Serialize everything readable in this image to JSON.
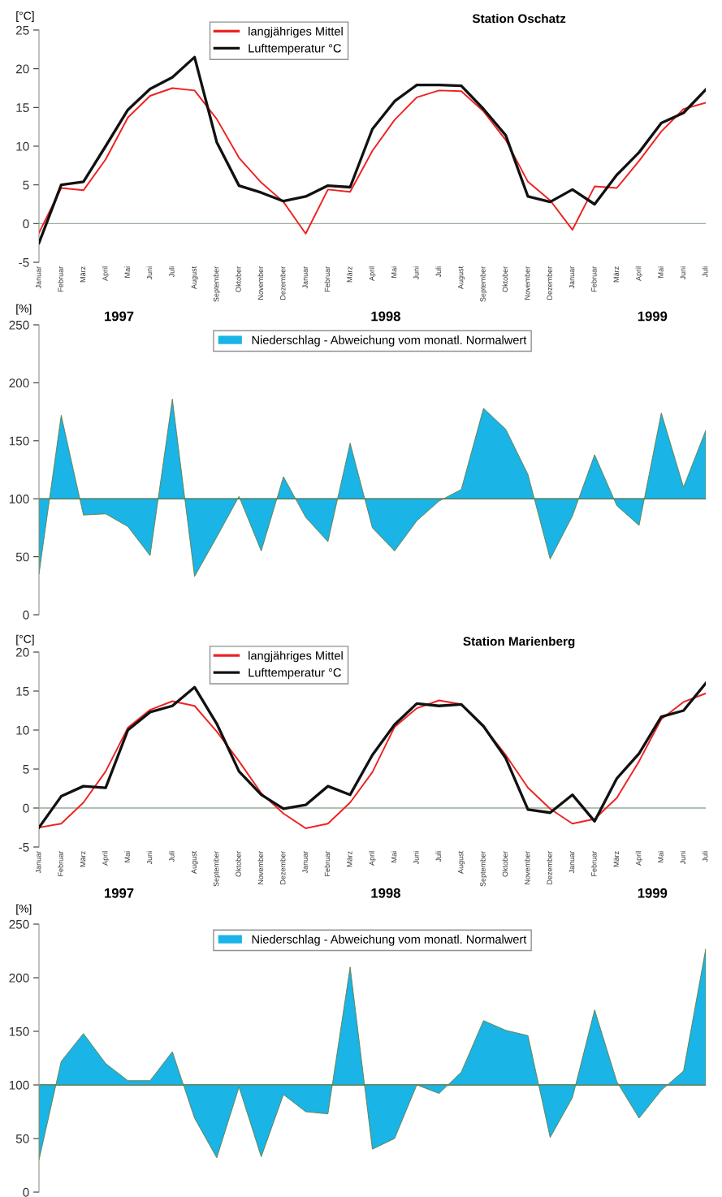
{
  "chart_data": [
    {
      "type": "line",
      "title": "Station Oschatz",
      "ylabel": "[°C]",
      "categories": [
        "Januar",
        "Februar",
        "März",
        "April",
        "Mai",
        "Juni",
        "Juli",
        "August",
        "September",
        "Oktober",
        "November",
        "Dezember",
        "Januar",
        "Februar",
        "März",
        "April",
        "Mai",
        "Juni",
        "Juli",
        "August",
        "September",
        "Oktober",
        "November",
        "Dezember",
        "Januar",
        "Februar",
        "März",
        "April",
        "Mai",
        "Juni",
        "Juli"
      ],
      "series": [
        {
          "name": "langjähriges Mittel",
          "color": "#ee2222",
          "values": [
            -1.2,
            4.6,
            4.3,
            8.3,
            13.7,
            16.5,
            17.5,
            17.2,
            13.5,
            8.5,
            5.3,
            2.8,
            -1.3,
            4.4,
            4.1,
            9.4,
            13.4,
            16.3,
            17.2,
            17.1,
            14.5,
            10.8,
            5.4,
            3.0,
            -0.8,
            4.8,
            4.6,
            8.1,
            11.9,
            14.8,
            15.6
          ]
        },
        {
          "name": "Lufttemperatur °C",
          "color": "#111111",
          "values": [
            -2.5,
            5.0,
            5.4,
            10.0,
            14.7,
            17.4,
            18.9,
            21.5,
            10.5,
            4.9,
            4.0,
            2.9,
            3.5,
            4.9,
            4.7,
            12.2,
            15.8,
            17.9,
            17.9,
            17.8,
            14.8,
            11.4,
            3.5,
            2.8,
            4.4,
            2.5,
            6.3,
            9.2,
            13.0,
            14.3,
            17.3
          ]
        }
      ],
      "ylim": [
        -5,
        25
      ],
      "yticks": [
        -5,
        0,
        5,
        10,
        15,
        20,
        25
      ],
      "legend": "top",
      "grid": false,
      "ref_lines": [
        {
          "axis": "y",
          "value": 0,
          "color": "#99aa99"
        }
      ],
      "annotations": [
        "1997",
        "1998",
        "1999"
      ]
    },
    {
      "type": "area",
      "ylabel": "[%]",
      "categories": [
        null,
        null,
        null,
        null,
        null,
        null,
        null,
        null,
        null,
        null,
        null,
        null,
        null,
        null,
        null,
        null,
        null,
        null,
        null,
        null,
        null,
        null,
        null,
        null,
        null,
        null,
        null,
        null,
        null,
        null,
        null
      ],
      "series": [
        {
          "name": "Niederschlag - Abweichung vom monatl. Normalwert",
          "color": "#1ab4e6",
          "values": [
            35,
            172,
            86,
            87,
            76,
            51,
            186,
            33,
            67,
            102,
            55,
            119,
            84,
            63,
            148,
            75,
            55,
            81,
            98,
            108,
            178,
            160,
            121,
            48,
            85,
            138,
            94,
            77,
            174,
            110,
            159
          ]
        }
      ],
      "ylim": [
        0,
        250
      ],
      "yticks": [
        0,
        50,
        100,
        150,
        200,
        250
      ],
      "legend": "top",
      "grid": false,
      "tick_labels": "y",
      "ref_lines": [
        {
          "axis": "y",
          "value": 100,
          "color": "#556655"
        }
      ]
    },
    {
      "type": "line",
      "title": "Station Marienberg",
      "ylabel": "[°C]",
      "categories": [
        "Januar",
        "Februar",
        "März",
        "April",
        "Mai",
        "Juni",
        "Juli",
        "August",
        "September",
        "Oktober",
        "November",
        "Dezember",
        "Januar",
        "Februar",
        "März",
        "April",
        "Mai",
        "Juni",
        "Juli",
        "August",
        "September",
        "Oktober",
        "November",
        "Dezember",
        "Januar",
        "Februar",
        "März",
        "April",
        "Mai",
        "Juni",
        "Juli"
      ],
      "series": [
        {
          "name": "langjähriges Mittel",
          "color": "#ee2222",
          "values": [
            -2.5,
            -2.0,
            0.7,
            4.7,
            10.3,
            12.6,
            13.7,
            13.1,
            9.8,
            6.0,
            1.9,
            -0.7,
            -2.6,
            -2.0,
            0.7,
            4.6,
            10.4,
            12.8,
            13.8,
            13.3,
            10.4,
            6.8,
            2.6,
            -0.1,
            -2.0,
            -1.4,
            1.3,
            6.0,
            11.4,
            13.6,
            14.7
          ]
        },
        {
          "name": "Lufttemperatur °C",
          "color": "#111111",
          "values": [
            -2.5,
            1.5,
            2.8,
            2.6,
            10.0,
            12.3,
            13.1,
            15.5,
            10.8,
            4.7,
            1.7,
            -0.1,
            0.4,
            2.8,
            1.7,
            6.8,
            10.7,
            13.4,
            13.1,
            13.3,
            10.5,
            6.4,
            -0.2,
            -0.6,
            1.7,
            -1.7,
            3.8,
            7.0,
            11.7,
            12.5,
            16.0
          ]
        }
      ],
      "ylim": [
        -5,
        20
      ],
      "yticks": [
        -5,
        0,
        5,
        10,
        15,
        20
      ],
      "legend": "top",
      "grid": false,
      "ref_lines": [
        {
          "axis": "y",
          "value": 0,
          "color": "#99aa99"
        }
      ],
      "annotations": [
        "1997",
        "1998",
        "1999"
      ]
    },
    {
      "type": "area",
      "ylabel": "[%]",
      "categories": [
        null,
        null,
        null,
        null,
        null,
        null,
        null,
        null,
        null,
        null,
        null,
        null,
        null,
        null,
        null,
        null,
        null,
        null,
        null,
        null,
        null,
        null,
        null,
        null,
        null,
        null,
        null,
        null,
        null,
        null,
        null
      ],
      "series": [
        {
          "name": "Niederschlag - Abweichung vom monatl. Normalwert",
          "color": "#1ab4e6",
          "values": [
            30,
            122,
            148,
            120,
            104,
            104,
            131,
            69,
            32,
            98,
            33,
            91,
            75,
            73,
            210,
            40,
            50,
            100,
            92,
            112,
            160,
            151,
            146,
            51,
            88,
            170,
            103,
            69,
            95,
            113,
            227
          ]
        }
      ],
      "ylim": [
        0,
        250
      ],
      "yticks": [
        0,
        50,
        100,
        150,
        200,
        250
      ],
      "legend": "top",
      "grid": false,
      "tick_labels": "y",
      "ref_lines": [
        {
          "axis": "y",
          "value": 100,
          "color": "#556655"
        }
      ]
    }
  ]
}
